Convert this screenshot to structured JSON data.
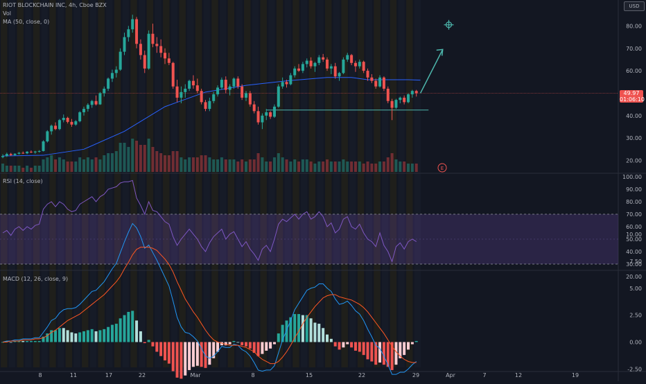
{
  "header": {
    "title": "RIOT BLOCKCHAIN INC, 4h, Cboe BZX",
    "indicators": [
      "Vol",
      "MA (50, close, 0)"
    ],
    "currency": "USD"
  },
  "price_badge": {
    "price": "49.97",
    "countdown": "01:06:10"
  },
  "earnings_marker": "E",
  "panes": {
    "rsi_label": "RSI (14, close)",
    "macd_label": "MACD (12, 26, close, 9)"
  },
  "colors": {
    "up": "#26a69a",
    "down": "#ef5350",
    "ma": "#2962ff",
    "rsi": "#7e57c2",
    "macd": "#2196f3",
    "signal": "#ff5722",
    "accent_teal": "#4db6ac"
  },
  "chart_data": [
    {
      "type": "candlestick",
      "title": "RIOT BLOCKCHAIN INC, 4h, Cboe BZX",
      "ylim": [
        15,
        88
      ],
      "yticks": [
        "20.00",
        "30.00",
        "40.00",
        "50.00",
        "60.00",
        "70.00",
        "80.00"
      ],
      "xticks": [
        "8",
        "11",
        "17",
        "22",
        "Mar",
        "8",
        "15",
        "22",
        "29",
        "Apr",
        "7",
        "12",
        "19"
      ],
      "candles": [
        [
          21.5,
          22.8,
          21.0,
          22.0
        ],
        [
          22.0,
          23.5,
          21.6,
          22.9
        ],
        [
          22.9,
          23.4,
          22.0,
          22.4
        ],
        [
          22.4,
          23.2,
          22.0,
          23.0
        ],
        [
          23.0,
          23.8,
          22.6,
          23.4
        ],
        [
          23.4,
          24.0,
          22.9,
          23.2
        ],
        [
          23.2,
          24.2,
          22.8,
          23.9
        ],
        [
          23.9,
          24.5,
          23.3,
          23.6
        ],
        [
          23.6,
          24.3,
          23.0,
          24.0
        ],
        [
          24.0,
          24.6,
          23.5,
          24.2
        ],
        [
          24.2,
          29.0,
          24.0,
          28.5
        ],
        [
          28.5,
          33.5,
          28.0,
          33.0
        ],
        [
          33.0,
          36.0,
          31.5,
          35.5
        ],
        [
          35.5,
          37.0,
          33.5,
          34.0
        ],
        [
          34.0,
          38.5,
          33.5,
          38.0
        ],
        [
          38.0,
          40.5,
          37.0,
          39.0
        ],
        [
          39.0,
          39.5,
          36.5,
          37.2
        ],
        [
          37.2,
          38.5,
          35.0,
          36.0
        ],
        [
          36.0,
          38.0,
          35.5,
          37.5
        ],
        [
          37.5,
          42.0,
          37.0,
          41.5
        ],
        [
          41.5,
          44.0,
          40.0,
          43.0
        ],
        [
          43.0,
          45.5,
          41.8,
          44.8
        ],
        [
          44.8,
          47.0,
          43.5,
          46.5
        ],
        [
          46.5,
          49.0,
          44.5,
          45.0
        ],
        [
          45.0,
          50.5,
          44.8,
          50.0
        ],
        [
          50.0,
          53.0,
          48.5,
          52.0
        ],
        [
          52.0,
          57.0,
          51.0,
          56.5
        ],
        [
          56.5,
          60.5,
          55.0,
          59.0
        ],
        [
          59.0,
          62.0,
          57.0,
          60.5
        ],
        [
          60.5,
          70.0,
          60.0,
          68.5
        ],
        [
          68.5,
          77.0,
          67.0,
          75.0
        ],
        [
          75.0,
          80.0,
          73.0,
          78.5
        ],
        [
          78.5,
          85.0,
          77.0,
          83.0
        ],
        [
          83.0,
          84.0,
          70.0,
          72.0
        ],
        [
          72.0,
          74.0,
          65.0,
          67.0
        ],
        [
          67.0,
          69.0,
          59.0,
          61.0
        ],
        [
          61.0,
          78.0,
          60.5,
          76.5
        ],
        [
          76.5,
          81.0,
          70.5,
          72.0
        ],
        [
          72.0,
          75.0,
          68.0,
          71.0
        ],
        [
          71.0,
          74.0,
          66.0,
          68.0
        ],
        [
          68.0,
          70.0,
          63.0,
          65.5
        ],
        [
          65.5,
          68.0,
          62.5,
          63.5
        ],
        [
          63.5,
          64.0,
          52.0,
          53.0
        ],
        [
          53.0,
          56.0,
          46.0,
          48.0
        ],
        [
          48.0,
          53.0,
          45.5,
          50.5
        ],
        [
          50.5,
          54.0,
          48.0,
          52.0
        ],
        [
          52.0,
          56.0,
          51.0,
          55.5
        ],
        [
          55.5,
          58.0,
          52.0,
          53.5
        ],
        [
          53.5,
          56.5,
          50.0,
          51.0
        ],
        [
          51.0,
          52.0,
          45.0,
          46.0
        ],
        [
          46.0,
          47.0,
          42.0,
          43.0
        ],
        [
          43.0,
          48.0,
          42.0,
          46.5
        ],
        [
          46.5,
          50.5,
          45.5,
          49.5
        ],
        [
          49.5,
          53.5,
          48.5,
          52.5
        ],
        [
          52.5,
          57.0,
          51.5,
          56.0
        ],
        [
          56.0,
          57.5,
          50.0,
          51.5
        ],
        [
          51.5,
          54.0,
          49.0,
          53.0
        ],
        [
          53.0,
          57.0,
          52.0,
          56.5
        ],
        [
          56.5,
          57.5,
          52.0,
          53.0
        ],
        [
          53.0,
          54.0,
          47.0,
          48.0
        ],
        [
          48.0,
          51.0,
          46.5,
          50.0
        ],
        [
          50.0,
          51.0,
          44.0,
          45.0
        ],
        [
          45.0,
          46.5,
          41.0,
          42.0
        ],
        [
          42.0,
          44.0,
          36.0,
          37.0
        ],
        [
          37.0,
          41.0,
          34.0,
          40.0
        ],
        [
          40.0,
          43.0,
          38.0,
          41.5
        ],
        [
          41.5,
          42.0,
          38.5,
          39.5
        ],
        [
          39.5,
          45.0,
          39.0,
          44.0
        ],
        [
          44.0,
          54.0,
          43.5,
          53.0
        ],
        [
          53.0,
          57.0,
          52.0,
          55.0
        ],
        [
          55.0,
          56.0,
          52.5,
          54.0
        ],
        [
          54.0,
          59.0,
          53.5,
          58.0
        ],
        [
          58.0,
          62.0,
          57.0,
          61.0
        ],
        [
          61.0,
          63.0,
          59.5,
          60.0
        ],
        [
          60.0,
          64.0,
          59.0,
          63.0
        ],
        [
          63.0,
          65.5,
          61.5,
          64.5
        ],
        [
          64.5,
          66.0,
          61.0,
          62.0
        ],
        [
          62.0,
          64.0,
          59.5,
          63.5
        ],
        [
          63.5,
          67.0,
          62.5,
          66.0
        ],
        [
          66.0,
          67.5,
          64.0,
          65.0
        ],
        [
          65.0,
          66.0,
          60.0,
          61.0
        ],
        [
          61.0,
          63.0,
          58.5,
          62.0
        ],
        [
          62.0,
          63.5,
          56.5,
          57.5
        ],
        [
          57.5,
          59.5,
          55.5,
          59.0
        ],
        [
          59.0,
          66.0,
          58.5,
          65.0
        ],
        [
          65.0,
          68.0,
          64.0,
          67.0
        ],
        [
          67.0,
          67.5,
          62.5,
          63.5
        ],
        [
          63.5,
          64.5,
          59.5,
          62.0
        ],
        [
          62.0,
          65.0,
          61.0,
          64.0
        ],
        [
          64.0,
          64.5,
          59.0,
          60.0
        ],
        [
          60.0,
          61.0,
          55.5,
          57.0
        ],
        [
          57.0,
          58.5,
          54.5,
          55.5
        ],
        [
          55.5,
          56.5,
          52.0,
          53.0
        ],
        [
          53.0,
          58.0,
          52.5,
          57.0
        ],
        [
          57.0,
          57.5,
          51.0,
          52.0
        ],
        [
          52.0,
          53.0,
          45.5,
          46.5
        ],
        [
          46.5,
          47.5,
          38.0,
          43.5
        ],
        [
          43.5,
          47.5,
          43.0,
          47.0
        ],
        [
          47.0,
          48.5,
          45.5,
          48.0
        ],
        [
          48.0,
          49.0,
          45.0,
          46.0
        ],
        [
          46.0,
          50.0,
          45.5,
          49.5
        ],
        [
          49.5,
          51.5,
          48.0,
          51.0
        ],
        [
          51.0,
          51.5,
          48.5,
          49.97
        ]
      ],
      "ma50": [
        [
          0,
          22.0
        ],
        [
          10,
          22.3
        ],
        [
          20,
          25.0
        ],
        [
          30,
          33.0
        ],
        [
          40,
          44.0
        ],
        [
          50,
          50.5
        ],
        [
          60,
          53.5
        ],
        [
          70,
          55.5
        ],
        [
          80,
          57.0
        ],
        [
          86,
          57.0
        ],
        [
          90,
          56.0
        ],
        [
          100,
          56.0
        ],
        [
          103,
          55.8
        ]
      ],
      "volume": [
        4,
        3,
        3,
        3,
        3,
        2,
        3,
        2,
        3,
        3,
        6,
        7,
        8,
        6,
        7,
        6,
        5,
        5,
        5,
        7,
        6,
        7,
        6,
        7,
        6,
        8,
        9,
        9,
        10,
        14,
        14,
        12,
        16,
        15,
        13,
        13,
        16,
        12,
        10,
        9,
        8,
        8,
        10,
        10,
        7,
        6,
        7,
        7,
        7,
        8,
        8,
        7,
        6,
        6,
        7,
        6,
        6,
        6,
        5,
        6,
        5,
        6,
        6,
        9,
        7,
        5,
        5,
        7,
        9,
        7,
        6,
        5,
        6,
        5,
        6,
        6,
        5,
        4,
        5,
        5,
        6,
        5,
        5,
        5,
        6,
        5,
        5,
        5,
        5,
        4,
        5,
        4,
        4,
        5,
        5,
        7,
        9,
        6,
        5,
        5,
        4,
        4,
        4
      ],
      "support_level": 42.5,
      "projection": {
        "from": [
          103,
          50.0
        ],
        "to": [
          108.5,
          69.5
        ],
        "target": [
          110,
          80.5
        ]
      }
    },
    {
      "type": "line",
      "title": "RSI (14, close)",
      "ylim": [
        18,
        104
      ],
      "yticks": [
        "20.00",
        "30.00",
        "40.00",
        "50.00",
        "60.00",
        "70.00",
        "80.00",
        "90.00",
        "100.00"
      ],
      "bands": {
        "upper": 70,
        "lower": 30
      },
      "values": [
        55,
        57,
        53,
        58,
        60,
        57,
        60,
        58,
        61,
        62,
        74,
        78,
        80,
        76,
        80,
        78,
        74,
        72,
        73,
        78,
        80,
        82,
        84,
        80,
        84,
        86,
        90,
        91,
        92,
        95,
        96,
        96,
        97,
        83,
        77,
        70,
        80,
        73,
        72,
        68,
        64,
        62,
        52,
        45,
        50,
        54,
        58,
        54,
        50,
        44,
        40,
        47,
        52,
        55,
        58,
        50,
        54,
        56,
        50,
        44,
        48,
        42,
        38,
        33,
        42,
        45,
        40,
        50,
        62,
        66,
        64,
        67,
        70,
        66,
        70,
        72,
        66,
        68,
        72,
        68,
        60,
        63,
        55,
        58,
        66,
        68,
        60,
        58,
        62,
        55,
        50,
        48,
        44,
        55,
        45,
        40,
        32,
        44,
        47,
        42,
        48,
        50,
        48
      ]
    },
    {
      "type": "line",
      "title": "MACD (12, 26, close, 9)",
      "ylim": [
        -3.3,
        12.5
      ],
      "yticks": [
        "-2.50",
        "0.00",
        "2.50",
        "5.00",
        "7.50",
        "10.00"
      ],
      "macd": [
        0.0,
        0.1,
        0.1,
        0.2,
        0.2,
        0.3,
        0.3,
        0.3,
        0.4,
        0.4,
        0.9,
        1.4,
        2.0,
        2.2,
        2.7,
        3.0,
        3.1,
        3.1,
        3.2,
        3.5,
        3.9,
        4.3,
        4.7,
        4.8,
        5.2,
        5.6,
        6.2,
        6.8,
        7.3,
        8.3,
        9.3,
        10.2,
        11.0,
        10.6,
        9.8,
        8.7,
        9.0,
        8.3,
        7.6,
        6.8,
        6.0,
        5.2,
        3.8,
        2.3,
        1.4,
        0.9,
        0.8,
        0.5,
        0.1,
        -0.6,
        -1.3,
        -1.5,
        -1.3,
        -0.9,
        -0.4,
        -0.5,
        -0.5,
        -0.2,
        -0.3,
        -0.7,
        -0.9,
        -1.3,
        -1.9,
        -2.6,
        -2.7,
        -2.6,
        -2.6,
        -2.2,
        -1.0,
        0.2,
        1.1,
        2.0,
        3.0,
        3.6,
        4.2,
        4.8,
        5.0,
        5.1,
        5.4,
        5.4,
        5.0,
        4.7,
        4.0,
        3.5,
        3.6,
        3.8,
        3.4,
        2.9,
        2.6,
        2.0,
        1.2,
        0.5,
        -0.3,
        -0.6,
        -1.3,
        -2.1,
        -3.0,
        -3.0,
        -2.8,
        -2.8,
        -2.5,
        -2.1,
        -1.8
      ],
      "signal": [
        0.0,
        0.0,
        0.1,
        0.1,
        0.1,
        0.2,
        0.2,
        0.2,
        0.3,
        0.3,
        0.4,
        0.6,
        0.9,
        1.1,
        1.4,
        1.7,
        2.0,
        2.2,
        2.4,
        2.6,
        2.9,
        3.2,
        3.5,
        3.8,
        4.1,
        4.4,
        4.8,
        5.2,
        5.6,
        6.1,
        6.8,
        7.4,
        8.1,
        8.6,
        8.8,
        8.8,
        8.8,
        8.7,
        8.5,
        8.1,
        7.7,
        7.2,
        6.5,
        5.6,
        4.8,
        4.0,
        3.4,
        2.8,
        2.3,
        1.7,
        1.1,
        0.6,
        0.2,
        0.0,
        -0.1,
        -0.2,
        -0.3,
        -0.3,
        -0.3,
        -0.4,
        -0.5,
        -0.7,
        -0.9,
        -1.3,
        -1.6,
        -1.8,
        -2.0,
        -2.0,
        -1.8,
        -1.4,
        -0.9,
        -0.3,
        0.4,
        1.0,
        1.7,
        2.3,
        2.8,
        3.3,
        3.7,
        4.1,
        4.3,
        4.4,
        4.4,
        4.2,
        4.1,
        4.0,
        3.9,
        3.7,
        3.5,
        3.2,
        2.8,
        2.3,
        1.8,
        1.3,
        0.8,
        0.2,
        -0.4,
        -0.9,
        -1.3,
        -1.6,
        -1.8,
        -1.9,
        -1.9
      ]
    }
  ]
}
